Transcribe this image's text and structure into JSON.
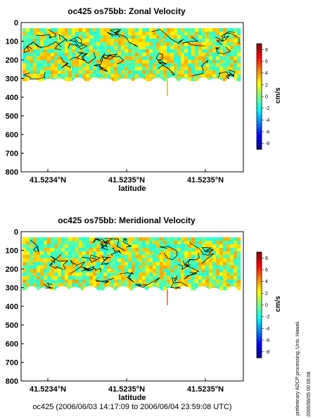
{
  "chart_data": [
    {
      "type": "heatmap",
      "title": "oc425 os75bb: Zonal Velocity",
      "xlabel": "latitude",
      "ylabel": "",
      "x_ticks": [
        "41.5234°N",
        "41.5235°N",
        "41.5235°N"
      ],
      "y_ticks": [
        0,
        100,
        200,
        300,
        400,
        500,
        600,
        700,
        800
      ],
      "ylim": [
        800,
        0
      ],
      "data_depth_range": [
        30,
        310
      ],
      "colorbar": {
        "label": "cm/s",
        "ticks": [
          8,
          6,
          4,
          2,
          0,
          -2,
          -4,
          -6,
          -8
        ],
        "range": [
          -9,
          9
        ]
      },
      "dominant_values_cm_s": [
        -1,
        3
      ]
    },
    {
      "type": "heatmap",
      "title": "oc425 os75bb: Meridional Velocity",
      "xlabel": "latitude",
      "ylabel": "",
      "x_ticks": [
        "41.5234°N",
        "41.5235°N",
        "41.5235°N"
      ],
      "y_ticks": [
        0,
        100,
        200,
        300,
        400,
        500,
        600,
        700,
        800
      ],
      "ylim": [
        800,
        0
      ],
      "data_depth_range": [
        30,
        310
      ],
      "colorbar": {
        "label": "cm/s",
        "ticks": [
          8,
          6,
          4,
          2,
          0,
          -2,
          -4,
          -6,
          -8
        ],
        "range": [
          -9,
          9
        ]
      },
      "dominant_values_cm_s": [
        -1,
        3
      ]
    }
  ],
  "footer": "oc425 (2006/06/03 14:17:09 to 2006/06/04 23:59:08 UTC)",
  "side_note": "preliminary ADCP processing,   Univ. Hawaii",
  "side_date": "2006/06/05 00:00:08"
}
